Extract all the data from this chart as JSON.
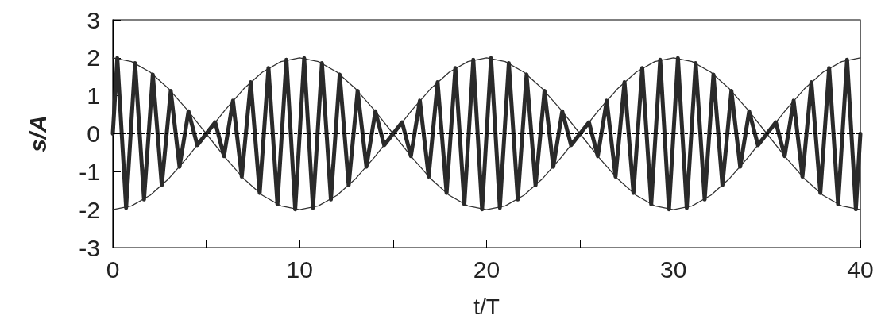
{
  "chart_data": {
    "type": "line",
    "xlabel": "t/T",
    "ylabel": "s/A",
    "xlim": [
      0,
      40
    ],
    "xticks": [
      0,
      {
        "value": 5,
        "label": null
      },
      10,
      {
        "value": 15,
        "label": null
      },
      20,
      {
        "value": 25,
        "label": null
      },
      30,
      {
        "value": 35,
        "label": null
      },
      40
    ],
    "ylim": [
      -3,
      3
    ],
    "yticks": [
      -3,
      -2,
      -1,
      0,
      1,
      2,
      3
    ],
    "grid": false,
    "marker": "none",
    "ref_lines": [
      {
        "axis": "y",
        "value": 0,
        "color": "#000000",
        "line_style": "dashed"
      }
    ],
    "series": [
      {
        "color": "#2a2a2a",
        "x": [
          0,
          0.24,
          0.71,
          1.19,
          1.67,
          2.14,
          2.62,
          3.1,
          3.57,
          4.05,
          4.52,
          5.0,
          5.48,
          5.95,
          6.43,
          6.9,
          7.38,
          7.86,
          8.33,
          8.81,
          9.29,
          9.76,
          10.24,
          10.71,
          11.19,
          11.67,
          12.14,
          12.62,
          13.1,
          13.57,
          14.05,
          14.52,
          15.0,
          15.48,
          15.95,
          16.43,
          16.9,
          17.38,
          17.86,
          18.33,
          18.81,
          19.29,
          19.76,
          20.24,
          20.71,
          21.19,
          21.67,
          22.14,
          22.62,
          23.1,
          23.57,
          24.05,
          24.52,
          25.0,
          25.48,
          25.95,
          26.43,
          26.9,
          27.38,
          27.86,
          28.33,
          28.81,
          29.29,
          29.76,
          30.24,
          30.71,
          31.19,
          31.67,
          32.14,
          32.62,
          33.1,
          33.57,
          34.05,
          34.52,
          35.0,
          35.48,
          35.95,
          36.43,
          36.9,
          37.38,
          37.86,
          38.33,
          38.81,
          39.29,
          39.76,
          40
        ],
        "values": [
          0,
          1.99,
          -1.95,
          1.86,
          -1.73,
          1.56,
          -1.36,
          1.13,
          -0.87,
          0.59,
          -0.3,
          0,
          0.3,
          -0.59,
          0.87,
          -1.13,
          1.36,
          -1.56,
          1.73,
          -1.86,
          1.95,
          -1.99,
          1.99,
          -1.95,
          1.86,
          -1.73,
          1.56,
          -1.36,
          1.13,
          -0.87,
          0.59,
          -0.3,
          0,
          0.3,
          -0.59,
          0.87,
          -1.13,
          1.36,
          -1.56,
          1.73,
          -1.86,
          1.95,
          -1.99,
          1.99,
          -1.95,
          1.86,
          -1.73,
          1.56,
          -1.36,
          1.13,
          -0.87,
          0.59,
          -0.3,
          0,
          0.3,
          -0.59,
          0.87,
          -1.13,
          1.36,
          -1.56,
          1.73,
          -1.86,
          1.95,
          -1.99,
          1.99,
          -1.95,
          1.86,
          -1.73,
          1.56,
          -1.36,
          1.13,
          -0.87,
          0.59,
          -0.3,
          0,
          0.3,
          -0.59,
          0.87,
          -1.13,
          1.36,
          -1.56,
          1.73,
          -1.86,
          1.95,
          -1.99,
          0
        ]
      },
      {
        "color": "#333333",
        "x": [
          0,
          1,
          2,
          3,
          4,
          5,
          6,
          7,
          8,
          9,
          10,
          11,
          12,
          13,
          14,
          15,
          16,
          17,
          18,
          19,
          20,
          21,
          22,
          23,
          24,
          25,
          26,
          27,
          28,
          29,
          30,
          31,
          32,
          33,
          34,
          35,
          36,
          37,
          38,
          39,
          40
        ],
        "values": [
          2,
          1.9,
          1.62,
          1.18,
          0.62,
          0,
          -0.62,
          -1.18,
          -1.62,
          -1.9,
          -2,
          -1.9,
          -1.62,
          -1.18,
          -0.62,
          0,
          0.62,
          1.18,
          1.62,
          1.9,
          2,
          1.9,
          1.62,
          1.18,
          0.62,
          0,
          -0.62,
          -1.18,
          -1.62,
          -1.9,
          -2,
          -1.9,
          -1.62,
          -1.18,
          -0.62,
          0,
          0.62,
          1.18,
          1.62,
          1.9,
          2
        ]
      },
      {
        "color": "#333333",
        "x": [
          0,
          1,
          2,
          3,
          4,
          5,
          6,
          7,
          8,
          9,
          10,
          11,
          12,
          13,
          14,
          15,
          16,
          17,
          18,
          19,
          20,
          21,
          22,
          23,
          24,
          25,
          26,
          27,
          28,
          29,
          30,
          31,
          32,
          33,
          34,
          35,
          36,
          37,
          38,
          39,
          40
        ],
        "values": [
          -2,
          -1.9,
          -1.62,
          -1.18,
          -0.62,
          0,
          0.62,
          1.18,
          1.62,
          1.9,
          2,
          1.9,
          1.62,
          1.18,
          0.62,
          0,
          -0.62,
          -1.18,
          -1.62,
          -1.9,
          -2,
          -1.9,
          -1.62,
          -1.18,
          -0.62,
          0,
          0.62,
          1.18,
          1.62,
          1.9,
          2,
          1.9,
          1.62,
          1.18,
          0.62,
          0,
          -0.62,
          -1.18,
          -1.62,
          -1.9,
          -2
        ]
      }
    ]
  }
}
